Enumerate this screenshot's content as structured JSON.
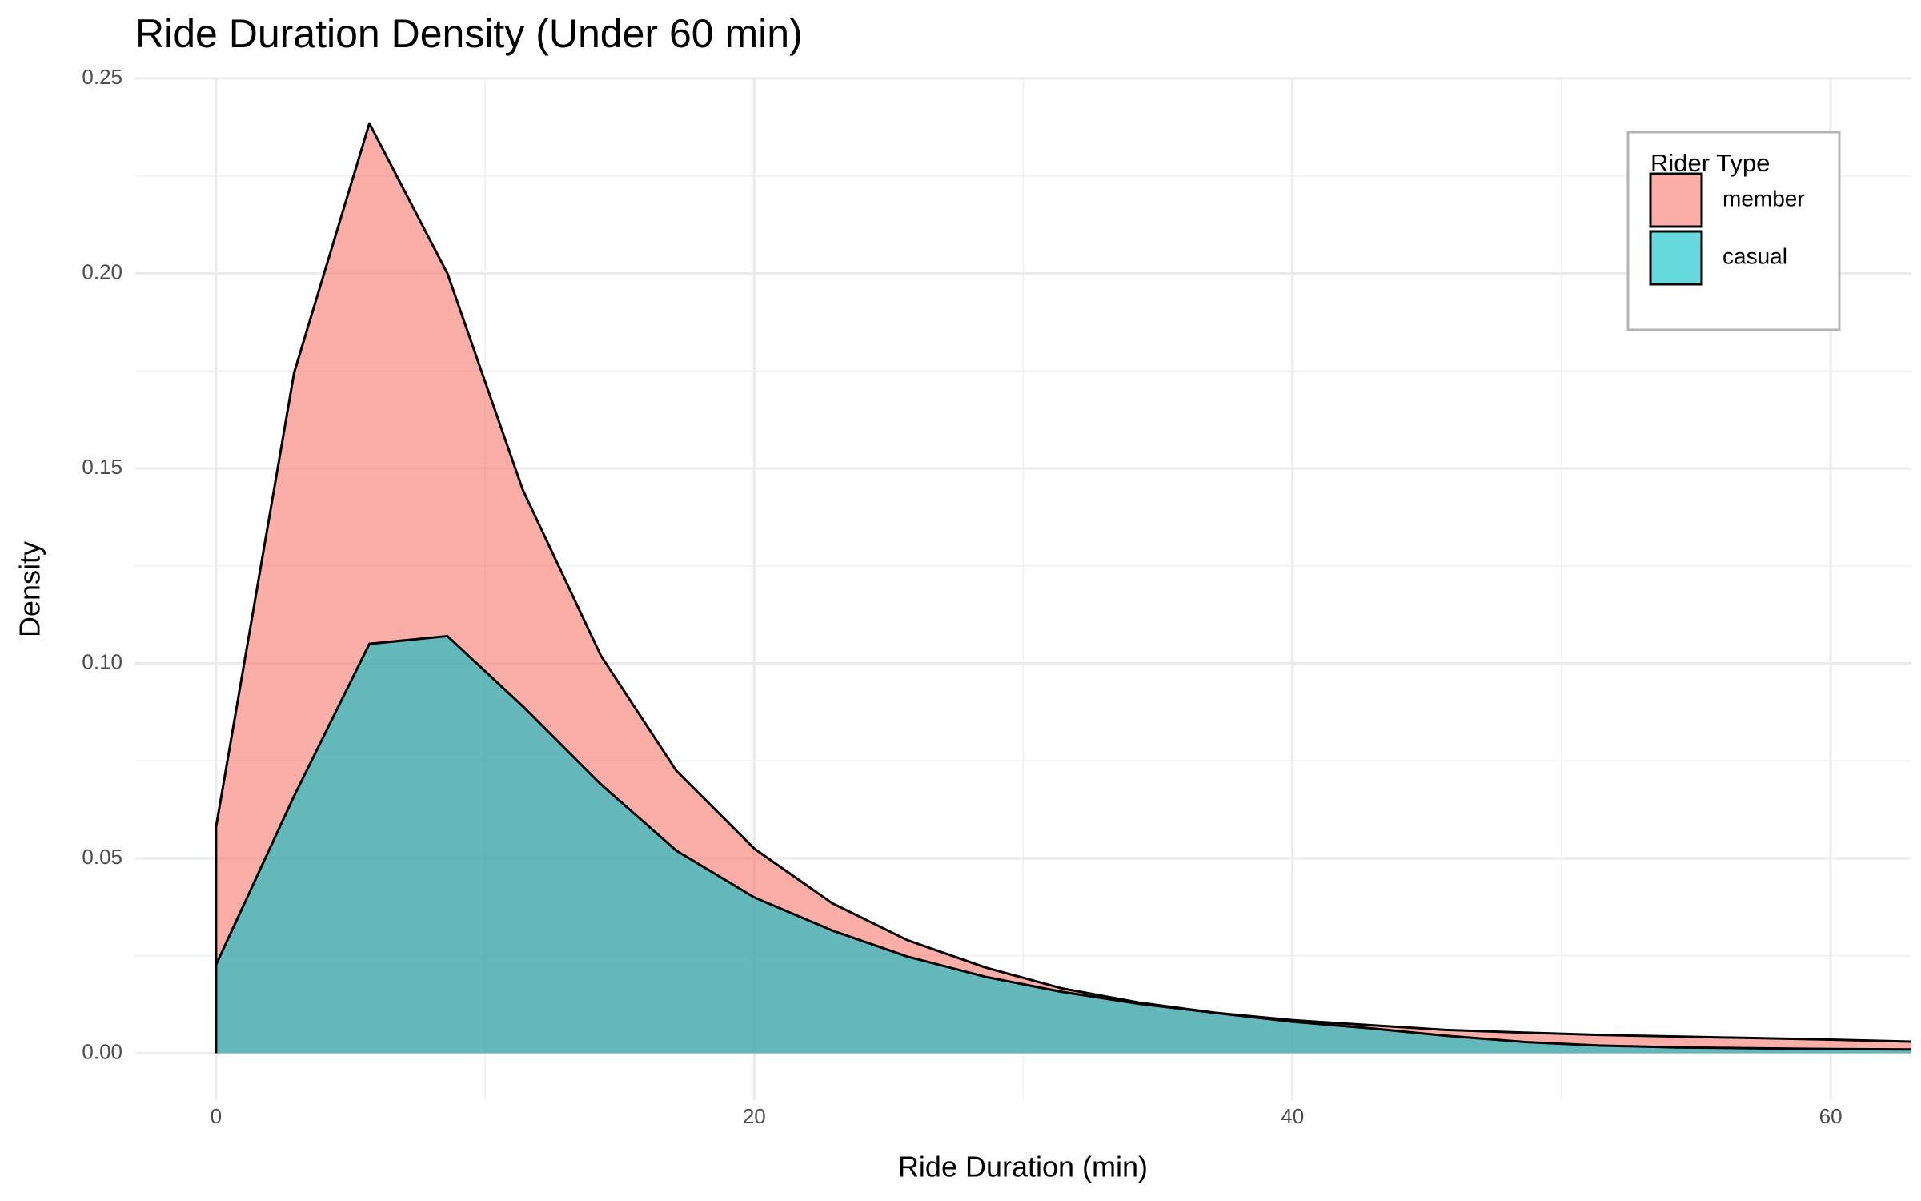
{
  "chart_data": {
    "type": "density",
    "title": "Ride Duration Density (Under 60 min)",
    "x_label": "Ride Duration (min)",
    "y_label": "Density",
    "legend_title": "Rider Type",
    "legend_position": "top-right",
    "grid": true,
    "xlim": [
      -3,
      63
    ],
    "ylim": [
      -0.012,
      0.25
    ],
    "xticks": [
      0,
      20,
      40,
      60
    ],
    "yticks": [
      {
        "value": 0,
        "label": "0.00"
      },
      {
        "value": 0.05,
        "label": "0.05"
      },
      {
        "value": 0.1,
        "label": "0.10"
      },
      {
        "value": 0.15,
        "label": "0.15"
      },
      {
        "value": 0.2,
        "label": "0.20"
      },
      {
        "value": 0.25,
        "label": "0.25"
      }
    ],
    "x": [
      0,
      2.9,
      5.7,
      8.6,
      11.4,
      14.3,
      17.1,
      20,
      22.9,
      25.7,
      28.6,
      31.4,
      34.3,
      37.1,
      40,
      42.9,
      45.7,
      48.6,
      51.4,
      54.3,
      57.1,
      60,
      63
    ],
    "series": [
      {
        "name": "member",
        "color": "#F8766D",
        "values": [
          0.058,
          0.1745,
          0.2385,
          0.2,
          0.1445,
          0.102,
          0.0725,
          0.0525,
          0.0385,
          0.029,
          0.022,
          0.0167,
          0.013,
          0.0104,
          0.0085,
          0.0072,
          0.006,
          0.0053,
          0.0047,
          0.0043,
          0.0039,
          0.0035,
          0.003
        ]
      },
      {
        "name": "casual",
        "color": "#00BFC4",
        "values": [
          0.0227,
          0.066,
          0.105,
          0.107,
          0.089,
          0.069,
          0.052,
          0.04,
          0.0315,
          0.0248,
          0.0196,
          0.0158,
          0.0127,
          0.0104,
          0.0081,
          0.0064,
          0.0045,
          0.0029,
          0.002,
          0.0015,
          0.0013,
          0.0011,
          0.001
        ]
      }
    ]
  }
}
